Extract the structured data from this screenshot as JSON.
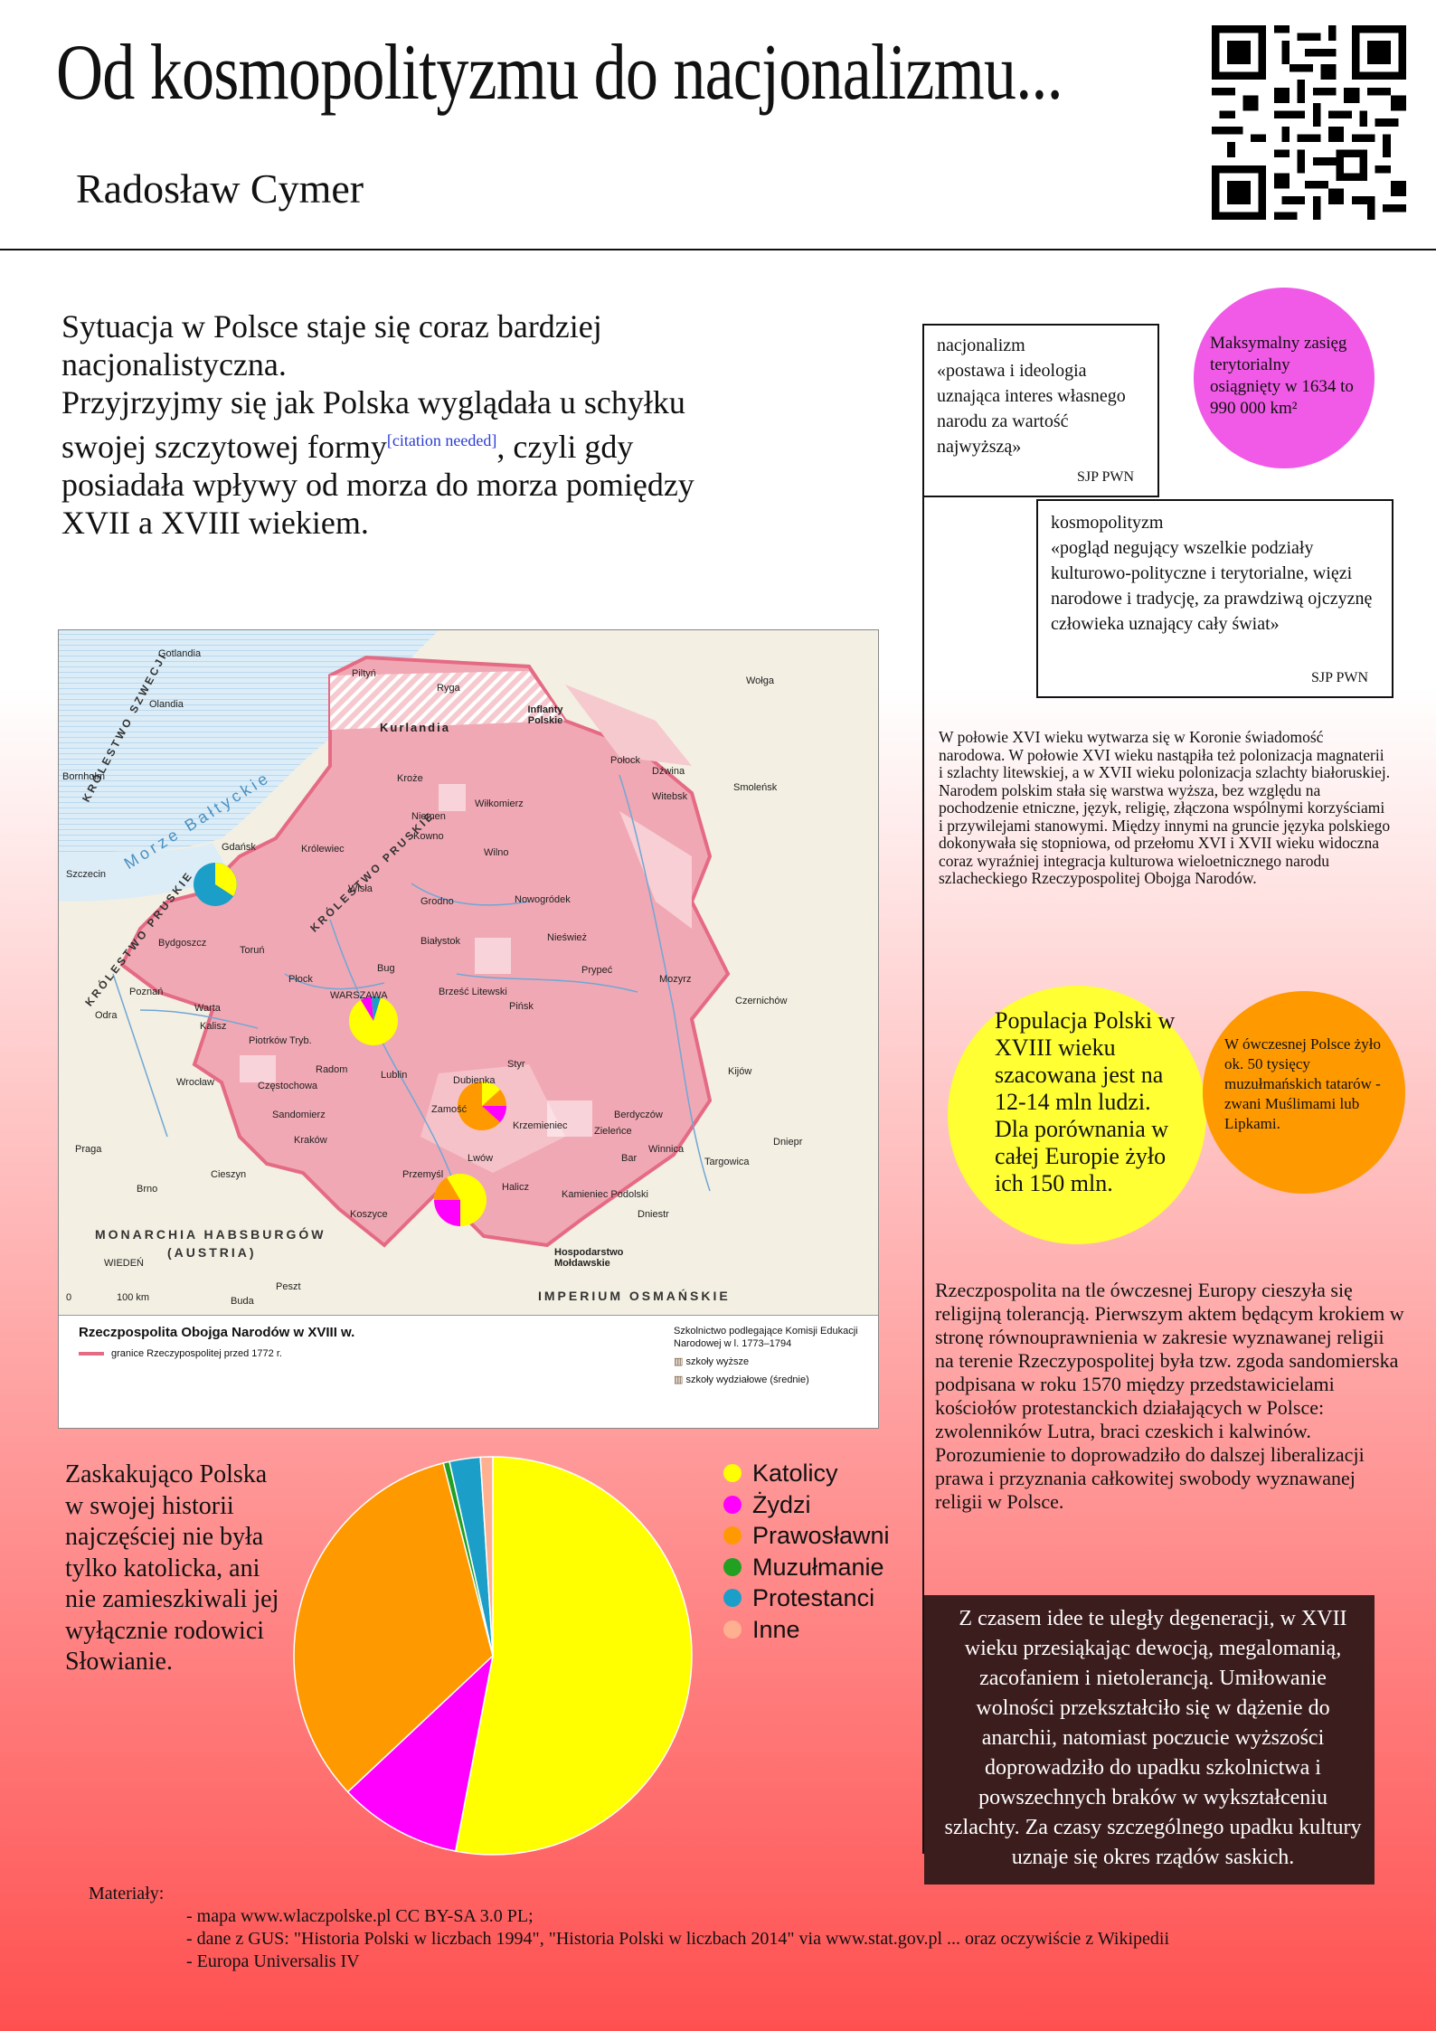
{
  "header": {
    "title": "Od kosmopolityzmu do nacjonalizmu...",
    "author": "Radosław Cymer"
  },
  "intro": {
    "line1": "Sytuacja w Polsce staje się coraz bardziej nacjonalistyczna.",
    "line2": "Przyjrzyjmy się jak Polska wyglądała u schyłku swojej szczytowej formy",
    "citation": "[citation needed]",
    "line3": ", czyli gdy posiadała wpływy od morza do morza pomiędzy XVII a XVIII wiekiem."
  },
  "definitions": {
    "nacjonalizm": {
      "term": "nacjonalizm",
      "text": "«postawa i ideologia uznająca interes własnego narodu za wartość najwyższą»",
      "source": "SJP PWN"
    },
    "kosmopolityzm": {
      "term": "kosmopolityzm",
      "text": "«pogląd negujący wszelkie podziały kulturowo-polityczne i terytorialne, więzi narodowe i tradycję, za prawdziwą ojczyznę człowieka uznający cały świat»",
      "source": "SJP PWN"
    }
  },
  "bubbles": {
    "territory": "Maksymalny zasięg terytorialny osiągnięty w 1634 to 990 000 km²",
    "population": "Populacja Polski w XVIII wieku szacowana jest na 12-14 mln ludzi. Dla porównania w całej Europie żyło ich 150 mln.",
    "muslims": "W ówczesnej Polsce żyło ok. 50 tysięcy muzułmańskich tatarów - zwani Muślimami lub Lipkami."
  },
  "paragraphs": {
    "p1": "W połowie XVI wieku wytwarza się w Koronie świadomość narodowa. W połowie XVI wieku nastąpiła też polonizacja magnaterii i szlachty litewskiej, a w XVII wieku polonizacja szlachty białoruskiej. Narodem polskim stała się warstwa wyższa, bez względu na pochodzenie etniczne, język, religię, złączona wspólnymi korzyściami i przywilejami stanowymi. Między innymi na gruncie języka polskiego dokonywała się stopniowa, od przełomu XVI i XVII wieku widoczna coraz wyraźniej integracja kulturowa wieloetnicznego narodu szlacheckiego Rzeczypospolitej Obojga Narodów.",
    "p2": "Rzeczpospolita na tle ówczesnej Europy cieszyła się religijną tolerancją. Pierwszym aktem będącym krokiem w stronę równouprawnienia w zakresie wyznawanej religii na terenie Rzeczypospolitej była tzw. zgoda sandomierska podpisana w roku 1570 między przedstawicielami kościołów protestanckich działających w Polsce: zwolenników Lutra, braci czeskich i kalwinów. Porozumienie to doprowadziło do dalszej liberalizacji prawa i przyznania całkowitej swobody wyznawanej religii w Polsce.",
    "p3": "Z czasem idee te uległy degeneracji, w XVII wieku przesiąkając dewocją, megalomanią, zacofaniem i nietolerancją. Umiłowanie wolności przekształciło się w dążenie do anarchii, natomiast poczucie wyższości doprowadziło do upadku szkolnictwa i powszechnych braków w wykształceniu szlachty. Za czasy szczególnego upadku kultury uznaje się okres rządów saskich."
  },
  "surprise": "Zaskakująco Polska w swojej historii najczęściej nie była tylko katolicka, ani nie zamieszkiwali jej wyłącznie rodowici Słowianie.",
  "map": {
    "legend_title": "Rzeczpospolita Obojga Narodów w XVIII w.",
    "legend_border": "granice Rzeczypospolitej przed 1772 r.",
    "legend_schools": "Szkolnictwo podlegające Komisji Edukacji Narodowej w l. 1773–1794",
    "legend_high": "szkoły wyższe",
    "legend_district": "szkoły wydziałowe (średnie)",
    "big_labels": [
      "KRÓLESTWO SZWECJI",
      "KRÓLESTWO PRUSKIE",
      "KRÓLESTWO PRUSKIE",
      "MONARCHIA HABSBURGÓW",
      "(AUSTRIA)",
      "IMPERIUM OSMAŃSKIE",
      "Morze Bałtyckie",
      "Kurlandia",
      "Inflanty Polskie",
      "Hospodarstwo Mołdawskie"
    ],
    "cities": [
      "Gotlandia",
      "Olandia",
      "Bornholm",
      "Szczecin",
      "Gdańsk",
      "Królewiec",
      "Bydgoszcz",
      "Toruń",
      "Poznań",
      "Kalisz",
      "Płock",
      "WARSZAWA",
      "Piotrków Tryb.",
      "Radom",
      "Lublin",
      "Częstochowa",
      "Sandomierz",
      "Wrocław",
      "Kraków",
      "Praga",
      "Brno",
      "Cieszyn",
      "Koszyce",
      "Przemyśl",
      "Lwów",
      "Halicz",
      "Zamość",
      "Dubienka",
      "Krzemieniec",
      "Zieleńce",
      "Berdyczów",
      "Bar",
      "Winnica",
      "Targowica",
      "Kamieniec Podolski",
      "Kijów",
      "Czernichów",
      "Mozyrz",
      "Pińsk",
      "Brześć Litewski",
      "Białystok",
      "Grodno",
      "Nowogródek",
      "Nieśwież",
      "Kowno",
      "Wilno",
      "Wiłkomierz",
      "Kroże",
      "Ryga",
      "Połock",
      "Witebsk",
      "Smoleńsk",
      "Piltyń",
      "WIEDEŃ",
      "Peszt",
      "Buda",
      "Niemen",
      "Wisła",
      "Bug",
      "Prypeć",
      "Dniepr",
      "Dniestr",
      "Odra",
      "Warta",
      "Styr",
      "Dźwina",
      "Wołga",
      "0",
      "100 km"
    ]
  },
  "chart_data": {
    "type": "pie",
    "categories": [
      "Katolicy",
      "Żydzi",
      "Prawosławni",
      "Muzułmanie",
      "Protestanci",
      "Inne"
    ],
    "values": [
      53,
      10,
      33,
      0.5,
      2.5,
      1
    ],
    "colors": [
      "#ffff00",
      "#ff00ff",
      "#ff9900",
      "#22a022",
      "#1b9fc9",
      "#ffb090"
    ],
    "legend_position": "right"
  },
  "materials": {
    "heading": "Materiały:",
    "items": [
      "- mapa www.wlaczpolske.pl CC BY-SA 3.0 PL;",
      "- dane z GUS: \"Historia Polski w liczbach 1994\", \"Historia Polski w liczbach 2014\" via www.stat.gov.pl ... oraz oczywiście z Wikipedii",
      "- Europa Universalis IV"
    ]
  }
}
